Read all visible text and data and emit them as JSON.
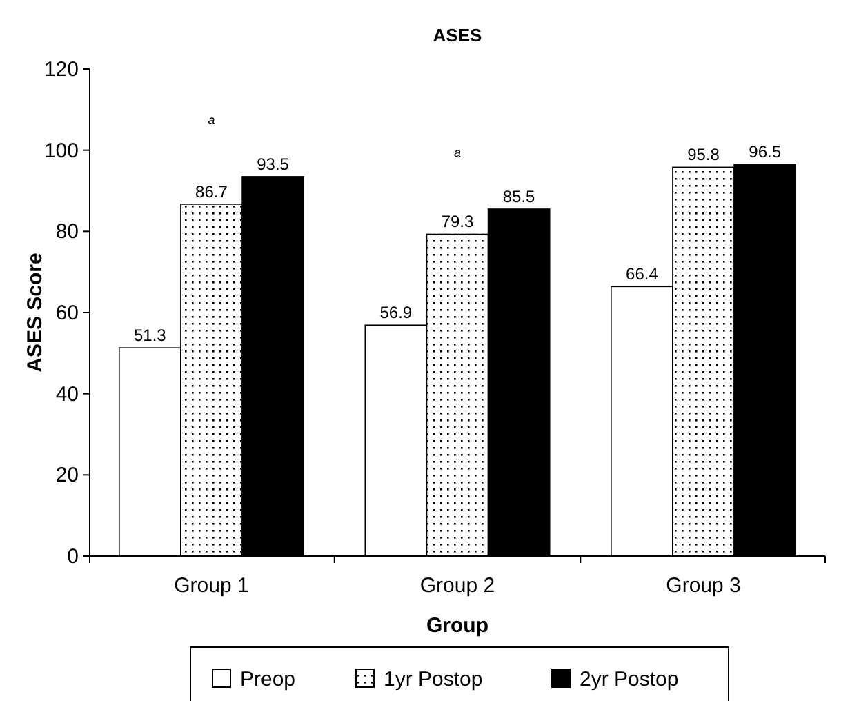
{
  "chart_data": {
    "type": "bar",
    "title": "ASES",
    "xlabel": "Group",
    "ylabel": "ASES Score",
    "categories": [
      "Group 1",
      "Group 2",
      "Group 3"
    ],
    "series": [
      {
        "name": "Preop",
        "color": "#ffffff",
        "values": [
          51.3,
          56.9,
          66.4
        ]
      },
      {
        "name": "1yr Postop",
        "color": "#000000",
        "values": [
          86.7,
          79.3,
          95.8
        ]
      },
      {
        "name": "2yr Postop",
        "color": "#000000",
        "values": [
          93.5,
          85.5,
          96.5
        ]
      }
    ],
    "ylim": [
      0,
      120
    ],
    "yticks": [
      0,
      20,
      40,
      60,
      80,
      100,
      120
    ],
    "data_labels": true,
    "legend": "bottom",
    "grid": false,
    "annotations": [
      "a",
      "a"
    ]
  }
}
